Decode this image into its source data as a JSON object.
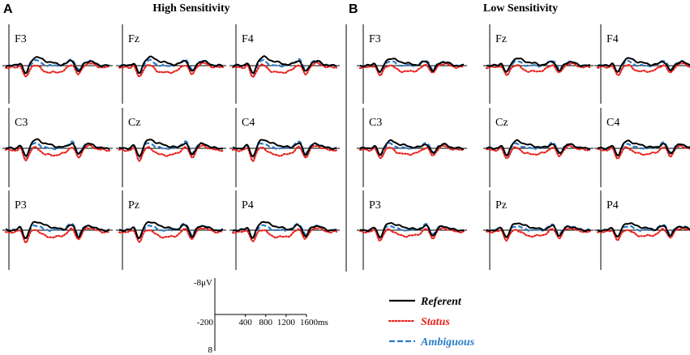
{
  "chart_data": {
    "type": "line",
    "panels": [
      {
        "letter": "A",
        "title": "High Sensitivity"
      },
      {
        "letter": "B",
        "title": "Low Sensitivity"
      }
    ],
    "electrodes": [
      [
        "F3",
        "Fz",
        "F4"
      ],
      [
        "C3",
        "Cz",
        "C4"
      ],
      [
        "P3",
        "Pz",
        "P4"
      ]
    ],
    "x_unit": "ms",
    "xlim": [
      -200,
      1600
    ],
    "ylim": [
      8,
      -8
    ],
    "scale_bar": {
      "y_top_label": "-8μV",
      "y_bottom_label": "8",
      "x_tick_labels": [
        "-200",
        "400",
        "800",
        "1200",
        "1600ms"
      ],
      "x_tick_values": [
        -200,
        400,
        800,
        1200,
        1600
      ]
    },
    "series": [
      {
        "name": "Referent",
        "color": "#000000",
        "style": "solid"
      },
      {
        "name": "Status",
        "color": "#e8231e",
        "style": "dotted"
      },
      {
        "name": "Ambiguous",
        "color": "#2a7bc8",
        "style": "dashed"
      }
    ]
  }
}
